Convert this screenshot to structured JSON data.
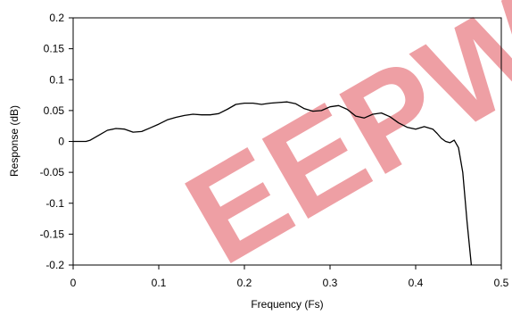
{
  "chart_data": {
    "type": "line",
    "title": "",
    "xlabel": "Frequency (Fs)",
    "ylabel": "Response (dB)",
    "xlim": [
      0,
      0.5
    ],
    "ylim": [
      -0.2,
      0.2
    ],
    "xticks": [
      "0",
      "0.1",
      "0.2",
      "0.3",
      "0.4",
      "0.5"
    ],
    "yticks": [
      "0.2",
      "0.15",
      "0.1",
      "0.05",
      "0",
      "-0.05",
      "-0.1",
      "-0.15",
      "-0.2"
    ],
    "grid": false,
    "legend": "none",
    "series": [
      {
        "color": "#000000",
        "x": [
          0,
          0.015,
          0.02,
          0.03,
          0.04,
          0.05,
          0.06,
          0.07,
          0.08,
          0.09,
          0.1,
          0.11,
          0.12,
          0.13,
          0.14,
          0.15,
          0.16,
          0.17,
          0.18,
          0.19,
          0.2,
          0.21,
          0.22,
          0.23,
          0.24,
          0.25,
          0.26,
          0.27,
          0.28,
          0.29,
          0.3,
          0.31,
          0.32,
          0.33,
          0.34,
          0.35,
          0.36,
          0.37,
          0.38,
          0.39,
          0.4,
          0.41,
          0.42,
          0.425,
          0.43,
          0.435,
          0.44,
          0.445,
          0.45,
          0.455,
          0.46,
          0.465
        ],
        "y": [
          0.0,
          0.0,
          0.002,
          0.01,
          0.018,
          0.021,
          0.02,
          0.015,
          0.016,
          0.022,
          0.028,
          0.035,
          0.039,
          0.042,
          0.044,
          0.043,
          0.043,
          0.045,
          0.052,
          0.06,
          0.062,
          0.062,
          0.06,
          0.062,
          0.063,
          0.064,
          0.061,
          0.053,
          0.049,
          0.05,
          0.056,
          0.058,
          0.052,
          0.041,
          0.038,
          0.044,
          0.046,
          0.04,
          0.03,
          0.023,
          0.02,
          0.024,
          0.02,
          0.013,
          0.005,
          0.0,
          -0.002,
          0.002,
          -0.01,
          -0.05,
          -0.13,
          -0.2
        ]
      }
    ]
  },
  "watermark": {
    "text": "EEPW",
    "color": "#e0505a"
  }
}
